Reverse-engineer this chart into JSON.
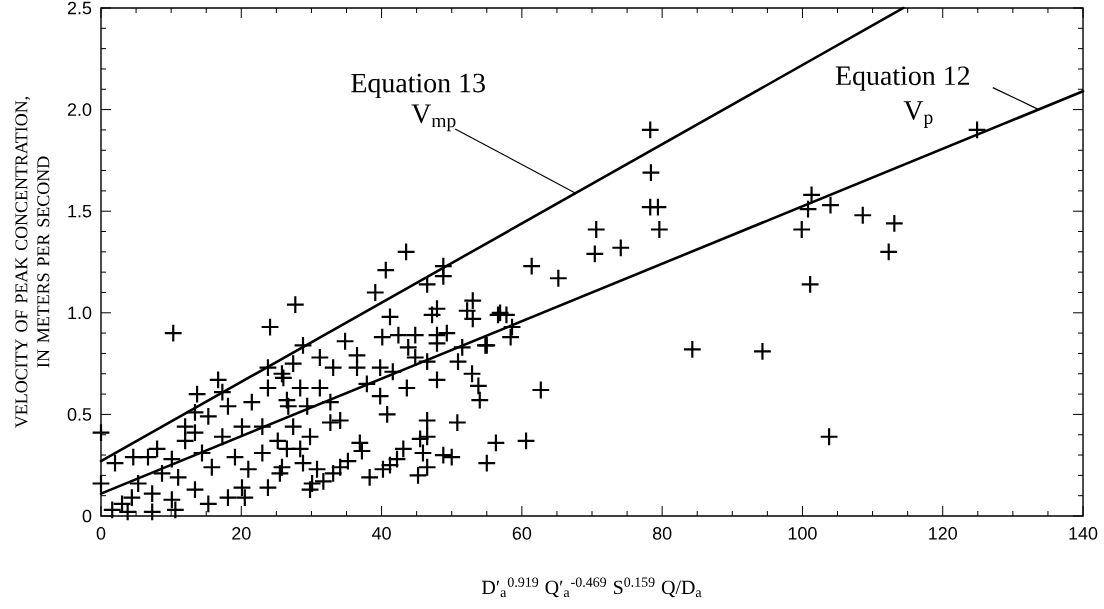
{
  "chart_data": {
    "type": "scatter",
    "xlabel": "D′$_{a}$$^{0.919}$ Q′$_{a}$$^{-0.469}$ S$^{0.159}$ Q/D$_{a}$",
    "ylabel": "VELOCITY OF PEAK CONCENTRATION, IN METERS PER SECOND",
    "xlim": [
      0,
      140
    ],
    "ylim": [
      0,
      2.5
    ],
    "xticks": [
      0,
      20,
      40,
      60,
      80,
      100,
      120,
      140
    ],
    "yticks": [
      0,
      {
        "value": 0.5,
        "label": "0.5"
      },
      {
        "value": 1,
        "label": "1.0"
      },
      {
        "value": 1.5,
        "label": "1.5"
      },
      {
        "value": 2,
        "label": "2.0"
      },
      {
        "value": 2.5,
        "label": "2.5"
      }
    ],
    "marker": "cross",
    "grid": false,
    "annotations": [
      {
        "text": "Equation 13",
        "x": 67.6,
        "y": 1.59
      },
      "V$_{mp}$",
      {
        "text": "Equation 12",
        "x": 133.7,
        "y": 2.0
      },
      "V$_{p}$"
    ],
    "series": [
      {
        "color": "#000000",
        "x": [
          124.9,
          101.3,
          100.8,
          99.9,
          104.0,
          108.6,
          113.1,
          112.3,
          101.1,
          94.3,
          103.8,
          78.3,
          78.4,
          78.3,
          79.4,
          79.6,
          70.6,
          70.4,
          74.1,
          61.4,
          65.2,
          56.9,
          57.8,
          58.6,
          58.4,
          55.0,
          84.3,
          62.7,
          56.3,
          60.6,
          55.0,
          43.5,
          40.6,
          39.1,
          27.7,
          48.8,
          48.8,
          46.5,
          47.2,
          47.9,
          53.0,
          52.2,
          53.0,
          56.6,
          41.2,
          28.8,
          34.8,
          36.5,
          40.1,
          42.4,
          44.8,
          43.8,
          44.8,
          47.9,
          49.3,
          47.9,
          51.5,
          54.8,
          50.9,
          46.5,
          47.9,
          52.9,
          53.8,
          54.0,
          43.6,
          31.2,
          33.1,
          36.5,
          39.8,
          41.6,
          37.9,
          39.8,
          40.8,
          46.5,
          50.8,
          46.5,
          45.5,
          43.1,
          36.9,
          37.2,
          35.2,
          34.1,
          38.3,
          40.2,
          41.2,
          42.2,
          45.9,
          46.5,
          45.2,
          48.8,
          50.0,
          33.1,
          30.1,
          29.8,
          31.7,
          27.4,
          26.0,
          28.4,
          31.2,
          32.7,
          34.1,
          32.7,
          29.4,
          26.5,
          27.4,
          29.8,
          28.4,
          26.5,
          25.5,
          28.8,
          30.8,
          10.3,
          24.1,
          16.7,
          13.7,
          17.3,
          23.8,
          23.8,
          25.8,
          21.5,
          2.0,
          4.6,
          6.7,
          8.0,
          13.4,
          15.3,
          18.1,
          13.4,
          12.0,
          17.3,
          20.1,
          23.0,
          25.2,
          10.1,
          8.7,
          11.0,
          14.4,
          15.8,
          19.1,
          21.0,
          20.1,
          18.1,
          15.3,
          13.4,
          10.1,
          7.3,
          4.4,
          3.0,
          1.6,
          3.8,
          7.3,
          10.6,
          5.3,
          12.0,
          26.7,
          23.0,
          25.8,
          20.5,
          23.8,
          0,
          0
        ],
        "values": [
          1.9,
          1.58,
          1.51,
          1.41,
          1.53,
          1.48,
          1.44,
          1.3,
          1.14,
          0.81,
          0.39,
          1.9,
          1.69,
          1.52,
          1.52,
          1.41,
          1.41,
          1.29,
          1.32,
          1.23,
          1.17,
          1.0,
          0.99,
          0.93,
          0.88,
          0.84,
          0.82,
          0.62,
          0.36,
          0.37,
          0.26,
          1.3,
          1.21,
          1.1,
          1.04,
          1.23,
          1.18,
          1.14,
          0.99,
          1.02,
          1.06,
          1.01,
          0.97,
          0.99,
          0.98,
          0.84,
          0.86,
          0.79,
          0.88,
          0.89,
          0.89,
          0.83,
          0.78,
          0.89,
          0.9,
          0.85,
          0.83,
          0.84,
          0.76,
          0.76,
          0.67,
          0.7,
          0.64,
          0.57,
          0.63,
          0.78,
          0.73,
          0.73,
          0.73,
          0.71,
          0.65,
          0.59,
          0.5,
          0.47,
          0.46,
          0.39,
          0.38,
          0.33,
          0.36,
          0.32,
          0.27,
          0.24,
          0.19,
          0.23,
          0.25,
          0.28,
          0.31,
          0.24,
          0.2,
          0.3,
          0.29,
          0.21,
          0.16,
          0.13,
          0.17,
          0.75,
          0.68,
          0.63,
          0.63,
          0.56,
          0.47,
          0.46,
          0.54,
          0.57,
          0.44,
          0.39,
          0.33,
          0.33,
          0.21,
          0.26,
          0.23,
          0.9,
          0.93,
          0.67,
          0.6,
          0.61,
          0.73,
          0.63,
          0.7,
          0.56,
          0.26,
          0.29,
          0.29,
          0.33,
          0.51,
          0.49,
          0.54,
          0.41,
          0.37,
          0.39,
          0.44,
          0.44,
          0.37,
          0.28,
          0.21,
          0.19,
          0.31,
          0.24,
          0.29,
          0.23,
          0.14,
          0.09,
          0.06,
          0.13,
          0.08,
          0.11,
          0.09,
          0.06,
          0.03,
          0.02,
          0.02,
          0.03,
          0.16,
          0.44,
          0.54,
          0.31,
          0.24,
          0.09,
          0.14,
          0.41,
          0.16
        ]
      },
      {
        "type": "line",
        "marker": "none",
        "color": "#000000",
        "x": [
          0,
          114.4
        ],
        "values": [
          0.27,
          2.5
        ]
      },
      {
        "type": "line",
        "marker": "none",
        "color": "#000000",
        "x": [
          0,
          140
        ],
        "values": [
          0.11,
          2.09
        ]
      }
    ]
  }
}
